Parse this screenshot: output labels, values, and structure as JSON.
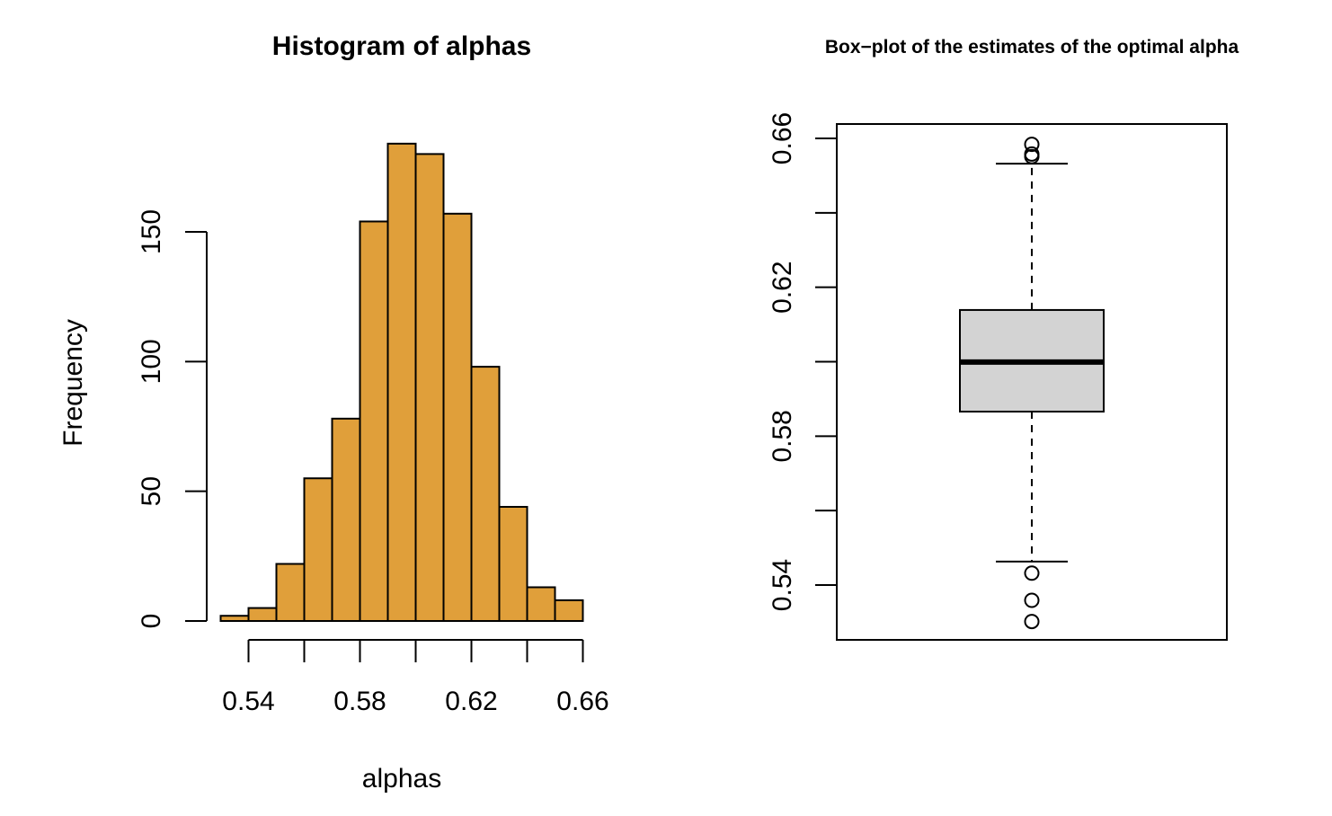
{
  "chart_data": [
    {
      "type": "bar",
      "subtype": "histogram",
      "title": "Histogram of alphas",
      "xlabel": "alphas",
      "ylabel": "Frequency",
      "bar_color": "#E09F3A",
      "bin_edges": [
        0.53,
        0.54,
        0.55,
        0.56,
        0.57,
        0.58,
        0.59,
        0.6,
        0.61,
        0.62,
        0.63,
        0.64,
        0.65,
        0.66
      ],
      "values": [
        2,
        5,
        22,
        55,
        78,
        154,
        184,
        180,
        157,
        98,
        44,
        13,
        8
      ],
      "xticks": [
        0.54,
        0.58,
        0.62,
        0.66
      ],
      "xtick_labels": [
        "0.54",
        "0.58",
        "0.62",
        "0.66"
      ],
      "yticks": [
        0,
        50,
        100,
        150
      ],
      "ytick_labels": [
        "0",
        "50",
        "100",
        "150"
      ],
      "xlim": [
        0.525,
        0.665
      ],
      "ylim": [
        0,
        200
      ],
      "grid": false
    },
    {
      "type": "boxplot",
      "title": "Box−plot of the estimates of the optimal alpha",
      "box_color": "#D3D3D3",
      "stats": {
        "whisker_low": 0.5463,
        "q1": 0.5866,
        "median": 0.5999,
        "q3": 0.6139,
        "whisker_high": 0.6532
      },
      "outliers": [
        0.6584,
        0.6558,
        0.6551,
        0.5432,
        0.5359,
        0.5302
      ],
      "yticks": [
        0.54,
        0.56,
        0.58,
        0.6,
        0.62,
        0.64,
        0.66
      ],
      "ytick_labels": [
        "0.54",
        "",
        "0.58",
        "",
        "0.62",
        "",
        "0.66"
      ],
      "ylim": [
        0.525,
        0.665
      ],
      "grid": false
    }
  ]
}
